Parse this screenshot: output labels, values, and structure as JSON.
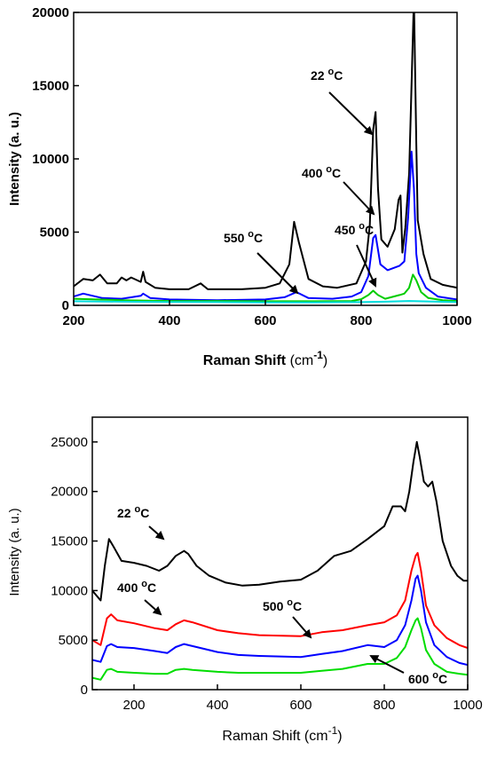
{
  "chart_data": [
    {
      "type": "line",
      "xlabel": "Raman Shift",
      "xlabel_unit": "(cm",
      "xlabel_sup": "-1",
      "xlabel_close": ")",
      "ylabel": "Intensity (a. u.)",
      "xlim": [
        200,
        1000
      ],
      "ylim": [
        0,
        20000
      ],
      "xticks": [
        200,
        400,
        600,
        800,
        1000
      ],
      "yticks": [
        0,
        5000,
        10000,
        15000,
        20000
      ],
      "series": [
        {
          "color": "#000000",
          "x": [
            200,
            220,
            240,
            255,
            270,
            290,
            300,
            310,
            320,
            340,
            345,
            350,
            370,
            400,
            440,
            465,
            480,
            500,
            550,
            600,
            630,
            650,
            660,
            670,
            690,
            720,
            750,
            790,
            810,
            818,
            825,
            830,
            835,
            842,
            855,
            870,
            878,
            882,
            886,
            892,
            900,
            905,
            910,
            915,
            918,
            930,
            945,
            970,
            1000
          ],
          "y": [
            1300,
            1800,
            1700,
            2100,
            1500,
            1500,
            1900,
            1700,
            1900,
            1600,
            2300,
            1600,
            1200,
            1100,
            1100,
            1500,
            1100,
            1100,
            1100,
            1200,
            1500,
            2800,
            5700,
            4300,
            1800,
            1300,
            1200,
            1500,
            3000,
            5500,
            12000,
            13200,
            8000,
            4500,
            4000,
            5200,
            7200,
            7500,
            3600,
            5300,
            9000,
            15000,
            21000,
            11000,
            5800,
            3500,
            1800,
            1400,
            1200
          ]
        },
        {
          "color": "#0000ff",
          "x": [
            200,
            220,
            260,
            300,
            340,
            345,
            360,
            400,
            500,
            600,
            640,
            665,
            690,
            740,
            780,
            800,
            815,
            825,
            830,
            840,
            855,
            880,
            890,
            898,
            905,
            910,
            915,
            920,
            935,
            960,
            1000
          ],
          "y": [
            600,
            800,
            500,
            450,
            650,
            800,
            500,
            400,
            350,
            400,
            550,
            900,
            500,
            450,
            600,
            900,
            2000,
            4600,
            4800,
            2800,
            2400,
            2700,
            3000,
            6000,
            10500,
            8000,
            3500,
            2200,
            1200,
            600,
            400
          ]
        },
        {
          "color": "#00cc00",
          "x": [
            200,
            300,
            400,
            500,
            600,
            700,
            780,
            800,
            815,
            825,
            835,
            850,
            880,
            890,
            900,
            908,
            915,
            925,
            940,
            970,
            1000
          ],
          "y": [
            450,
            350,
            300,
            300,
            280,
            280,
            300,
            420,
            700,
            1000,
            700,
            450,
            700,
            800,
            1200,
            2100,
            1700,
            900,
            500,
            350,
            300
          ]
        },
        {
          "color": "#00dddd",
          "x": [
            200,
            300,
            400,
            500,
            600,
            700,
            800,
            850,
            900,
            950,
            1000
          ],
          "y": [
            280,
            250,
            230,
            220,
            200,
            200,
            220,
            250,
            300,
            260,
            220
          ]
        }
      ],
      "annotations": [
        {
          "text": "22",
          "sup": "o",
          "unit": "C",
          "x": 680,
          "y": 15200
        },
        {
          "text": "400",
          "sup": "o",
          "unit": "C",
          "x": 595,
          "y": 8500
        },
        {
          "text": "450",
          "sup": "o",
          "unit": "C",
          "x": 620,
          "y": 4600
        },
        {
          "text": "550",
          "sup": "o",
          "unit": "C",
          "x": 460,
          "y": 3800
        }
      ]
    },
    {
      "type": "line",
      "xlabel": "Raman Shift",
      "xlabel_unit": "(cm",
      "xlabel_sup": "-1",
      "xlabel_close": ")",
      "ylabel": "Intensity (a. u.)",
      "xlim": [
        100,
        1000
      ],
      "ylim": [
        0,
        27500
      ],
      "xticks": [
        200,
        400,
        600,
        800,
        1000
      ],
      "yticks": [
        0,
        5000,
        10000,
        15000,
        20000,
        25000
      ],
      "series": [
        {
          "color": "#000000",
          "x": [
            100,
            120,
            130,
            140,
            150,
            170,
            200,
            230,
            260,
            280,
            300,
            320,
            330,
            350,
            380,
            420,
            460,
            500,
            550,
            600,
            640,
            680,
            720,
            760,
            800,
            820,
            840,
            850,
            860,
            870,
            878,
            885,
            895,
            905,
            915,
            925,
            940,
            960,
            975,
            990,
            1000
          ],
          "y": [
            10000,
            9000,
            12500,
            15200,
            14500,
            13000,
            12800,
            12500,
            12000,
            12500,
            13500,
            14000,
            13700,
            12500,
            11500,
            10800,
            10500,
            10600,
            10900,
            11100,
            12000,
            13500,
            14000,
            15200,
            16500,
            18500,
            18500,
            18000,
            20000,
            23000,
            25000,
            23500,
            21000,
            20500,
            21000,
            19000,
            15000,
            12500,
            11500,
            11000,
            11000
          ]
        },
        {
          "color": "#ff0000",
          "x": [
            100,
            120,
            135,
            145,
            160,
            200,
            250,
            280,
            300,
            320,
            340,
            400,
            450,
            500,
            600,
            650,
            700,
            760,
            800,
            830,
            850,
            865,
            875,
            880,
            888,
            900,
            920,
            950,
            980,
            1000
          ],
          "y": [
            5000,
            4500,
            7200,
            7600,
            7000,
            6700,
            6200,
            6000,
            6600,
            7000,
            6800,
            6000,
            5700,
            5500,
            5400,
            5800,
            6000,
            6500,
            6800,
            7500,
            9000,
            12000,
            13500,
            13800,
            12000,
            8500,
            6500,
            5200,
            4500,
            4200
          ]
        },
        {
          "color": "#0000ff",
          "x": [
            100,
            120,
            135,
            145,
            160,
            200,
            250,
            280,
            300,
            320,
            340,
            400,
            450,
            500,
            600,
            650,
            700,
            760,
            800,
            830,
            850,
            865,
            875,
            880,
            888,
            900,
            920,
            950,
            980,
            1000
          ],
          "y": [
            3000,
            2800,
            4400,
            4600,
            4300,
            4200,
            3900,
            3700,
            4300,
            4600,
            4400,
            3800,
            3500,
            3400,
            3300,
            3600,
            3900,
            4500,
            4300,
            5000,
            6500,
            9000,
            11200,
            11500,
            10000,
            6800,
            4500,
            3300,
            2700,
            2500
          ]
        },
        {
          "color": "#00dd00",
          "x": [
            100,
            120,
            135,
            145,
            160,
            200,
            250,
            280,
            300,
            320,
            340,
            400,
            450,
            500,
            600,
            650,
            700,
            760,
            800,
            830,
            850,
            865,
            875,
            880,
            888,
            900,
            920,
            950,
            980,
            1000
          ],
          "y": [
            1200,
            1000,
            2000,
            2100,
            1800,
            1700,
            1600,
            1600,
            2000,
            2100,
            2000,
            1800,
            1700,
            1700,
            1700,
            1900,
            2100,
            2600,
            2600,
            3200,
            4300,
            6000,
            7000,
            7200,
            6200,
            4000,
            2600,
            1800,
            1600,
            1500
          ]
        }
      ],
      "annotations": [
        {
          "text": "22",
          "sup": "o",
          "unit": "C",
          "x": 145,
          "y": 15500
        },
        {
          "text": "400",
          "sup": "o",
          "unit": "C",
          "x": 130,
          "y": 8600
        },
        {
          "text": "500",
          "sup": "o",
          "unit": "C",
          "x": 585,
          "y": 8000
        },
        {
          "text": "600",
          "sup": "o",
          "unit": "C",
          "x": 845,
          "y": 300
        }
      ]
    }
  ]
}
